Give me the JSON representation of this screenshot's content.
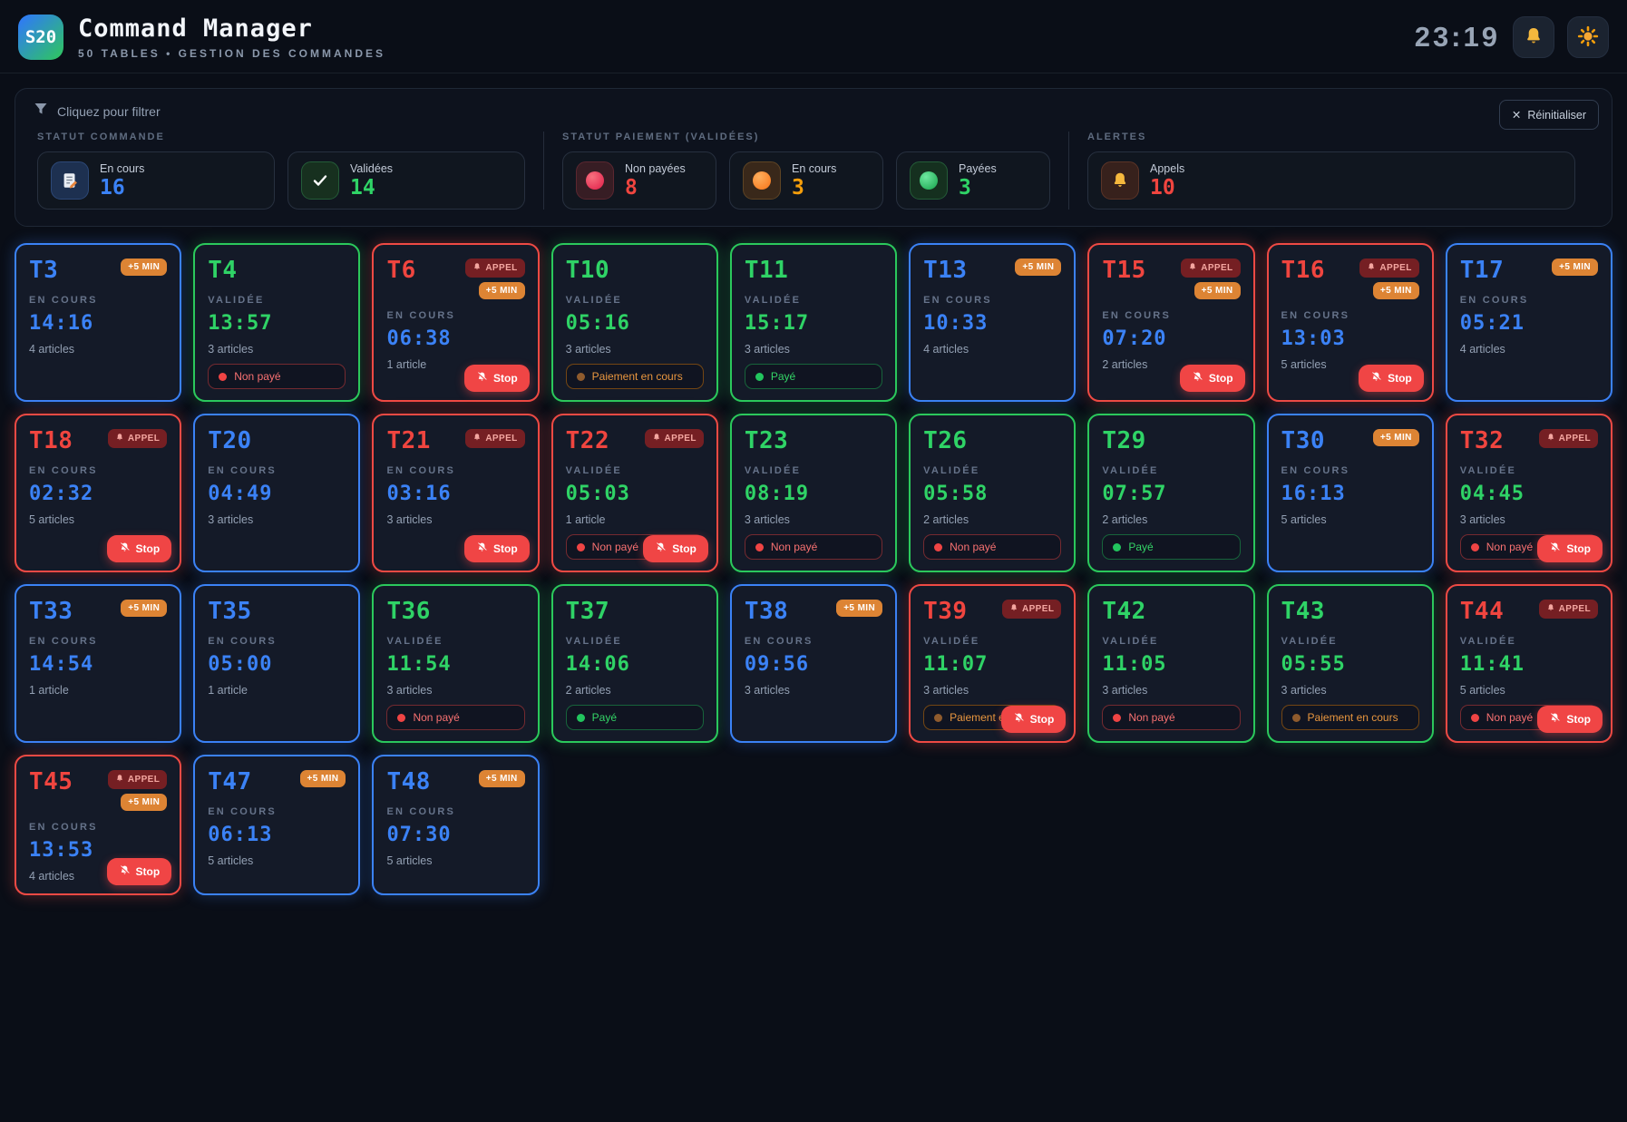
{
  "header": {
    "logo": "S20",
    "title": "Command Manager",
    "subtitle": "50 TABLES • GESTION DES COMMANDES",
    "clock": "23:19",
    "bell_icon": "bell-icon",
    "theme_icon": "sun-icon"
  },
  "colors": {
    "blue": "#3b82f6",
    "green": "#2fd366",
    "red": "#f0453f",
    "orange": "#f59e0b",
    "card_bg": "#141a28",
    "page_bg": "#0a0e17"
  },
  "filters": {
    "label": "Cliquez pour filtrer",
    "reset_label": "Réinitialiser",
    "reset_icon": "✕",
    "sections": [
      {
        "title": "STATUT COMMANDE",
        "items": [
          {
            "label": "En cours",
            "count": "16",
            "color": "blue",
            "icon": "memo"
          },
          {
            "label": "Validées",
            "count": "14",
            "color": "green",
            "icon": "check"
          }
        ]
      },
      {
        "title": "STATUT PAIEMENT (VALIDÉES)",
        "items": [
          {
            "label": "Non payées",
            "count": "8",
            "color": "red",
            "icon": "dotred"
          },
          {
            "label": "En cours",
            "count": "3",
            "color": "orange",
            "icon": "dotorange"
          },
          {
            "label": "Payées",
            "count": "3",
            "color": "green",
            "icon": "dotgreen"
          }
        ]
      },
      {
        "title": "ALERTES",
        "items": [
          {
            "label": "Appels",
            "count": "10",
            "color": "red",
            "icon": "bell"
          }
        ]
      }
    ]
  },
  "badge_labels": {
    "appel": "APPEL",
    "plus5": "+5 MIN"
  },
  "pill_labels": {
    "unpaid": "Non payé",
    "paying": "Paiement en cours",
    "paid": "Payé"
  },
  "stop_label": "Stop",
  "cards": [
    {
      "table": "T3",
      "accent": "blue",
      "status": "EN COURS",
      "time": "14:16",
      "articles": "4 articles",
      "badges": [
        "plus5"
      ],
      "pill": null,
      "stop": false
    },
    {
      "table": "T4",
      "accent": "green",
      "status": "VALIDÉE",
      "time": "13:57",
      "articles": "3 articles",
      "badges": [],
      "pill": "unpaid",
      "stop": false
    },
    {
      "table": "T6",
      "accent": "red",
      "status": "EN COURS",
      "time": "06:38",
      "articles": "1 article",
      "badges": [
        "appel",
        "plus5"
      ],
      "pill": null,
      "stop": true
    },
    {
      "table": "T10",
      "accent": "green",
      "status": "VALIDÉE",
      "time": "05:16",
      "articles": "3 articles",
      "badges": [],
      "pill": "paying",
      "stop": false
    },
    {
      "table": "T11",
      "accent": "green",
      "status": "VALIDÉE",
      "time": "15:17",
      "articles": "3 articles",
      "badges": [],
      "pill": "paid",
      "stop": false
    },
    {
      "table": "T13",
      "accent": "blue",
      "status": "EN COURS",
      "time": "10:33",
      "articles": "4 articles",
      "badges": [
        "plus5"
      ],
      "pill": null,
      "stop": false
    },
    {
      "table": "T15",
      "accent": "red",
      "status": "EN COURS",
      "time": "07:20",
      "articles": "2 articles",
      "badges": [
        "appel",
        "plus5"
      ],
      "pill": null,
      "stop": true
    },
    {
      "table": "T16",
      "accent": "red",
      "status": "EN COURS",
      "time": "13:03",
      "articles": "5 articles",
      "badges": [
        "appel",
        "plus5"
      ],
      "pill": null,
      "stop": true
    },
    {
      "table": "T17",
      "accent": "blue",
      "status": "EN COURS",
      "time": "05:21",
      "articles": "4 articles",
      "badges": [
        "plus5"
      ],
      "pill": null,
      "stop": false
    },
    {
      "table": "T18",
      "accent": "red",
      "status": "EN COURS",
      "time": "02:32",
      "articles": "5 articles",
      "badges": [
        "appel"
      ],
      "pill": null,
      "stop": true
    },
    {
      "table": "T20",
      "accent": "blue",
      "status": "EN COURS",
      "time": "04:49",
      "articles": "3 articles",
      "badges": [],
      "pill": null,
      "stop": false
    },
    {
      "table": "T21",
      "accent": "red",
      "status": "EN COURS",
      "time": "03:16",
      "articles": "3 articles",
      "badges": [
        "appel"
      ],
      "pill": null,
      "stop": true
    },
    {
      "table": "T22",
      "accent": "red",
      "status": "VALIDÉE",
      "time": "05:03",
      "articles": "1 article",
      "badges": [
        "appel"
      ],
      "pill": "unpaid",
      "stop": true
    },
    {
      "table": "T23",
      "accent": "green",
      "status": "VALIDÉE",
      "time": "08:19",
      "articles": "3 articles",
      "badges": [],
      "pill": "unpaid",
      "stop": false
    },
    {
      "table": "T26",
      "accent": "green",
      "status": "VALIDÉE",
      "time": "05:58",
      "articles": "2 articles",
      "badges": [],
      "pill": "unpaid",
      "stop": false
    },
    {
      "table": "T29",
      "accent": "green",
      "status": "VALIDÉE",
      "time": "07:57",
      "articles": "2 articles",
      "badges": [],
      "pill": "paid",
      "stop": false
    },
    {
      "table": "T30",
      "accent": "blue",
      "status": "EN COURS",
      "time": "16:13",
      "articles": "5 articles",
      "badges": [
        "plus5"
      ],
      "pill": null,
      "stop": false
    },
    {
      "table": "T32",
      "accent": "red",
      "status": "VALIDÉE",
      "time": "04:45",
      "articles": "3 articles",
      "badges": [
        "appel"
      ],
      "pill": "unpaid",
      "stop": true
    },
    {
      "table": "T33",
      "accent": "blue",
      "status": "EN COURS",
      "time": "14:54",
      "articles": "1 article",
      "badges": [
        "plus5"
      ],
      "pill": null,
      "stop": false
    },
    {
      "table": "T35",
      "accent": "blue",
      "status": "EN COURS",
      "time": "05:00",
      "articles": "1 article",
      "badges": [],
      "pill": null,
      "stop": false
    },
    {
      "table": "T36",
      "accent": "green",
      "status": "VALIDÉE",
      "time": "11:54",
      "articles": "3 articles",
      "badges": [],
      "pill": "unpaid",
      "stop": false
    },
    {
      "table": "T37",
      "accent": "green",
      "status": "VALIDÉE",
      "time": "14:06",
      "articles": "2 articles",
      "badges": [],
      "pill": "paid",
      "stop": false
    },
    {
      "table": "T38",
      "accent": "blue",
      "status": "EN COURS",
      "time": "09:56",
      "articles": "3 articles",
      "badges": [
        "plus5"
      ],
      "pill": null,
      "stop": false
    },
    {
      "table": "T39",
      "accent": "red",
      "status": "VALIDÉE",
      "time": "11:07",
      "articles": "3 articles",
      "badges": [
        "appel"
      ],
      "pill": "paying",
      "stop": true
    },
    {
      "table": "T42",
      "accent": "green",
      "status": "VALIDÉE",
      "time": "11:05",
      "articles": "3 articles",
      "badges": [],
      "pill": "unpaid",
      "stop": false
    },
    {
      "table": "T43",
      "accent": "green",
      "status": "VALIDÉE",
      "time": "05:55",
      "articles": "3 articles",
      "badges": [],
      "pill": "paying",
      "stop": false
    },
    {
      "table": "T44",
      "accent": "red",
      "status": "VALIDÉE",
      "time": "11:41",
      "articles": "5 articles",
      "badges": [
        "appel"
      ],
      "pill": "unpaid",
      "stop": true
    },
    {
      "table": "T45",
      "accent": "red",
      "status": "EN COURS",
      "time": "13:53",
      "articles": "4 articles",
      "badges": [
        "appel",
        "plus5"
      ],
      "pill": null,
      "stop": true
    },
    {
      "table": "T47",
      "accent": "blue",
      "status": "EN COURS",
      "time": "06:13",
      "articles": "5 articles",
      "badges": [
        "plus5"
      ],
      "pill": null,
      "stop": false
    },
    {
      "table": "T48",
      "accent": "blue",
      "status": "EN COURS",
      "time": "07:30",
      "articles": "5 articles",
      "badges": [
        "plus5"
      ],
      "pill": null,
      "stop": false
    }
  ]
}
